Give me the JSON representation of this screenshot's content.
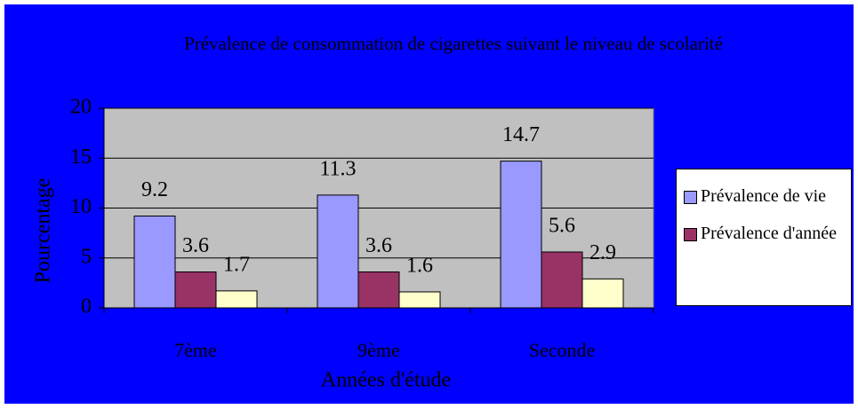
{
  "chart_data": {
    "type": "bar",
    "title": "Prévalence de consommation de cigarettes suivant le niveau de scolarité",
    "x_label": "Années d'étude",
    "y_label": "Pourcentage",
    "categories": [
      "7ème",
      "9ème",
      "Seconde"
    ],
    "series": [
      {
        "name": "Prévalence de vie",
        "color": "#9999ff",
        "values": [
          9.2,
          11.3,
          14.7
        ]
      },
      {
        "name": "Prévalence d'année",
        "color": "#993366",
        "values": [
          3.6,
          3.6,
          5.6
        ]
      },
      {
        "color": "#ffffcc",
        "values": [
          1.7,
          1.6,
          2.9
        ]
      }
    ],
    "ylim": [
      0,
      20
    ],
    "yticks": [
      0,
      5,
      10,
      15,
      20
    ],
    "grid": true
  }
}
